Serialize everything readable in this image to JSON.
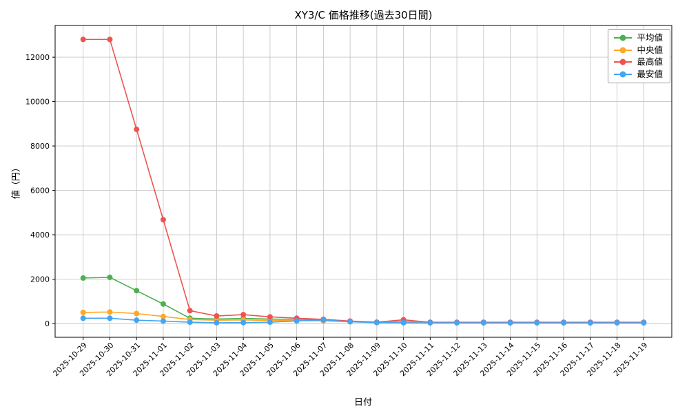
{
  "chart_data": {
    "type": "line",
    "title": "XY3/C 価格推移(過去30日間)",
    "xlabel": "日付",
    "ylabel": "値（円）",
    "x": [
      "2025-10-29",
      "2025-10-30",
      "2025-10-31",
      "2025-11-01",
      "2025-11-02",
      "2025-11-03",
      "2025-11-04",
      "2025-11-05",
      "2025-11-06",
      "2025-11-07",
      "2025-11-08",
      "2025-11-09",
      "2025-11-10",
      "2025-11-11",
      "2025-11-12",
      "2025-11-13",
      "2025-11-14",
      "2025-11-15",
      "2025-11-16",
      "2025-11-17",
      "2025-11-18",
      "2025-11-19"
    ],
    "series": [
      {
        "name": "平均値",
        "color": "#4caf50",
        "values": [
          2050,
          2080,
          1480,
          880,
          240,
          200,
          230,
          200,
          190,
          170,
          100,
          60,
          90,
          55,
          50,
          50,
          50,
          50,
          50,
          50,
          50,
          50
        ]
      },
      {
        "name": "中央値",
        "color": "#ffa726",
        "values": [
          500,
          520,
          450,
          320,
          180,
          150,
          160,
          140,
          130,
          120,
          80,
          45,
          60,
          45,
          45,
          45,
          45,
          45,
          45,
          45,
          45,
          45
        ]
      },
      {
        "name": "最高値",
        "color": "#ef5350",
        "values": [
          12800,
          12800,
          8750,
          4680,
          580,
          340,
          400,
          300,
          240,
          190,
          110,
          60,
          170,
          55,
          55,
          55,
          55,
          55,
          55,
          55,
          55,
          55
        ]
      },
      {
        "name": "最安値",
        "color": "#42a5f5",
        "values": [
          240,
          240,
          150,
          110,
          60,
          35,
          40,
          60,
          120,
          160,
          80,
          40,
          35,
          30,
          30,
          30,
          30,
          30,
          30,
          30,
          30,
          30
        ]
      }
    ],
    "yticks": [
      0,
      2000,
      4000,
      6000,
      8000,
      10000,
      12000
    ],
    "ylim": [
      -620,
      13430
    ],
    "grid": true,
    "legend_position": "upper right",
    "grid_color": "#c6c6c6",
    "axis_color": "#000000"
  }
}
